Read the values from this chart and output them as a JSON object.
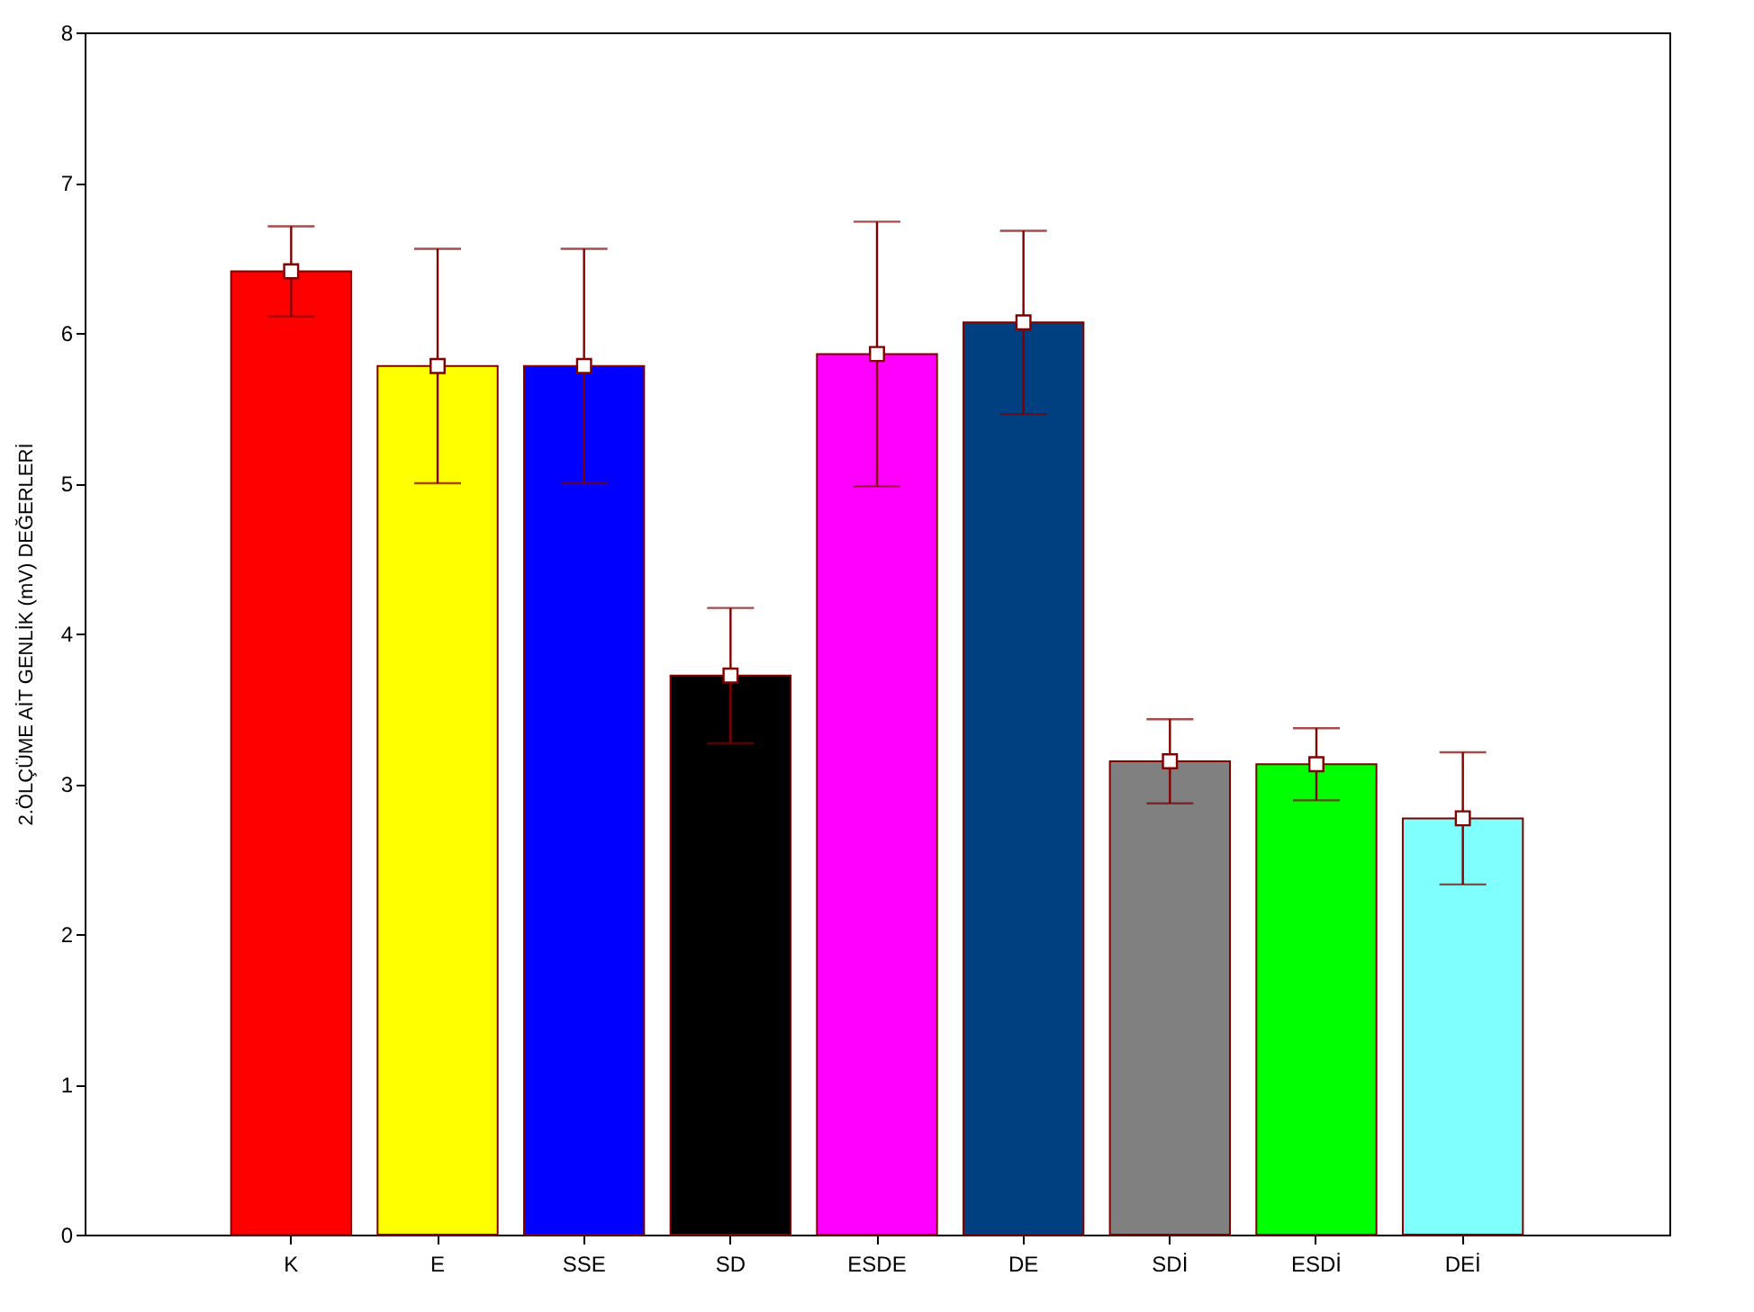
{
  "chart_data": {
    "type": "bar",
    "ylabel": "2.ÖLÇÜME AİT GENLİK (mV) DEĞERLERİ",
    "categories": [
      "K",
      "E",
      "SSE",
      "SD",
      "ESDE",
      "DE",
      "SDİ",
      "ESDİ",
      "DEİ"
    ],
    "series": [
      {
        "values": [
          6.41,
          5.78,
          5.78,
          3.72,
          5.86,
          6.07,
          3.15,
          3.13,
          2.77
        ],
        "errors": [
          0.3,
          0.78,
          0.78,
          0.45,
          0.88,
          0.61,
          0.28,
          0.24,
          0.44
        ],
        "colors": [
          "#ff0000",
          "#ffff00",
          "#0000ff",
          "#000000",
          "#ff00ff",
          "#004080",
          "#808080",
          "#00ff00",
          "#80ffff"
        ]
      },
      {
        "type": "scatter",
        "x": [
          "K",
          "E",
          "SSE",
          "SD",
          "ESDE",
          "DE",
          "SDİ",
          "ESDİ",
          "DEİ"
        ],
        "values": [
          6.41,
          5.78,
          5.78,
          3.72,
          5.86,
          6.07,
          3.15,
          3.13,
          2.77
        ],
        "color": "#ffffff",
        "marker": "square"
      }
    ],
    "ylim": [
      0,
      8
    ],
    "yticks": [
      0,
      1,
      2,
      3,
      4,
      5,
      6,
      7,
      8
    ],
    "grid": false
  }
}
